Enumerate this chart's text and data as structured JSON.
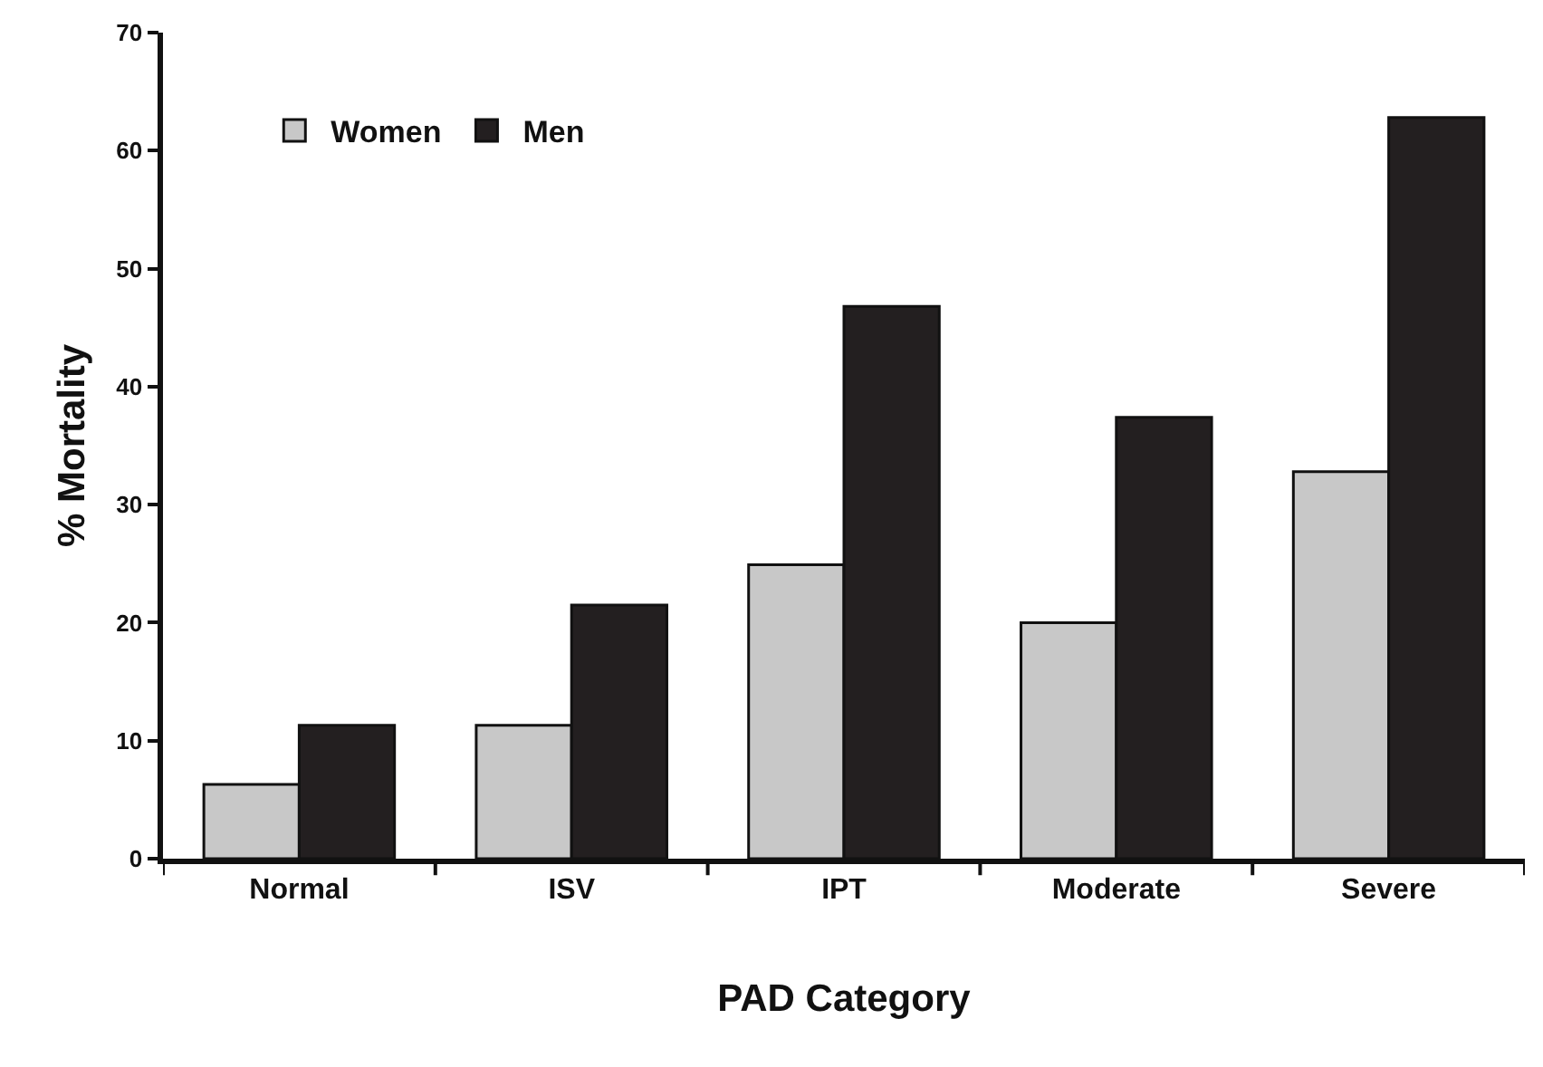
{
  "chart_data": {
    "type": "bar",
    "xlabel": "PAD Category",
    "ylabel": "% Mortality",
    "categories": [
      "Normal",
      "ISV",
      "IPT",
      "Moderate",
      "Severe"
    ],
    "series": [
      {
        "name": "Women",
        "color": "#c8c8c8",
        "values": [
          6.3,
          11.3,
          24.9,
          20.0,
          32.8
        ]
      },
      {
        "name": "Men",
        "color": "#231f20",
        "values": [
          11.3,
          21.5,
          46.8,
          37.4,
          62.8
        ]
      }
    ],
    "ylim": [
      0,
      70
    ],
    "yticks": [
      0,
      10,
      20,
      30,
      40,
      50,
      60,
      70
    ],
    "legend": "top left"
  }
}
